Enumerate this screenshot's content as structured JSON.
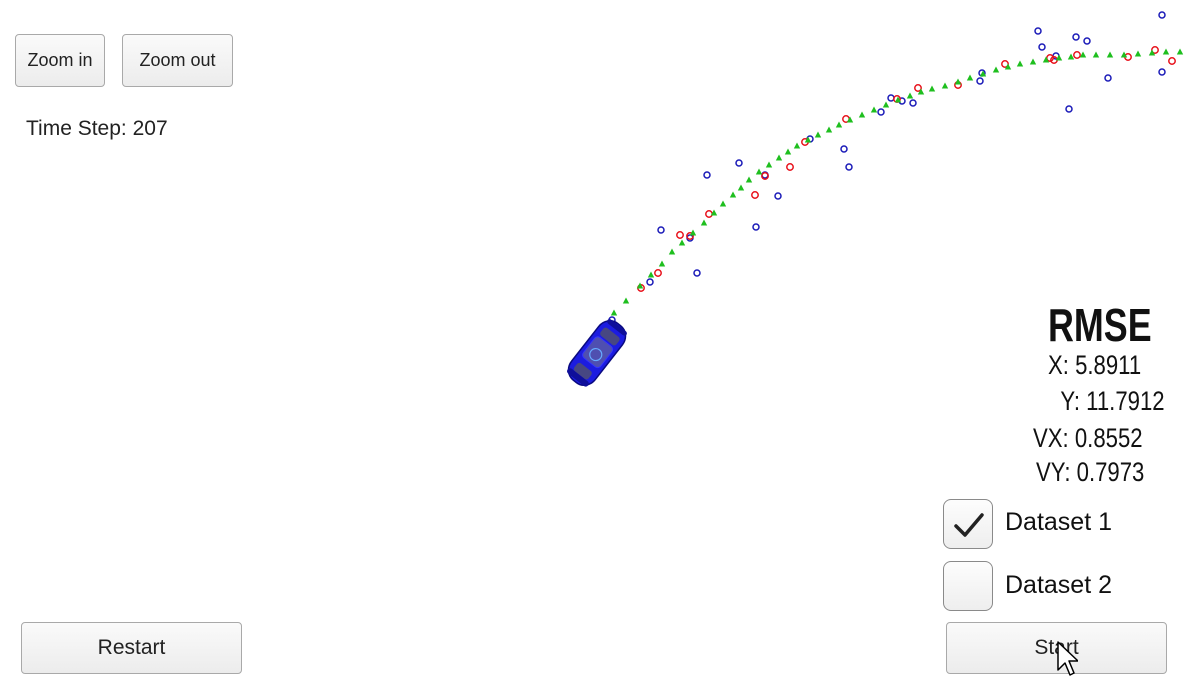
{
  "toolbar": {
    "zoom_in_label": "Zoom in",
    "zoom_out_label": "Zoom out"
  },
  "status": {
    "time_step_label": "Time Step:",
    "time_step_value": "207"
  },
  "rmse": {
    "title": "RMSE",
    "x_label": "X:",
    "x_value": "5.8911",
    "y_label": "Y:",
    "y_value": "11.7912",
    "vx_label": "VX:",
    "vx_value": "0.8552",
    "vy_label": "VY:",
    "vy_value": "0.7973"
  },
  "datasets": [
    {
      "label": "Dataset 1",
      "checked": true
    },
    {
      "label": "Dataset 2",
      "checked": false
    }
  ],
  "controls": {
    "restart_label": "Restart",
    "start_label": "Start"
  },
  "colors": {
    "lidar_marker": "#e8121c",
    "radar_marker": "#1a1ab8",
    "estimate_marker": "#1fbf1f",
    "car_body": "#1c1ce0"
  },
  "icons": {
    "checkbox_mark": "checkmark-icon",
    "car": "car-icon",
    "cursor": "mouse-pointer-icon"
  }
}
